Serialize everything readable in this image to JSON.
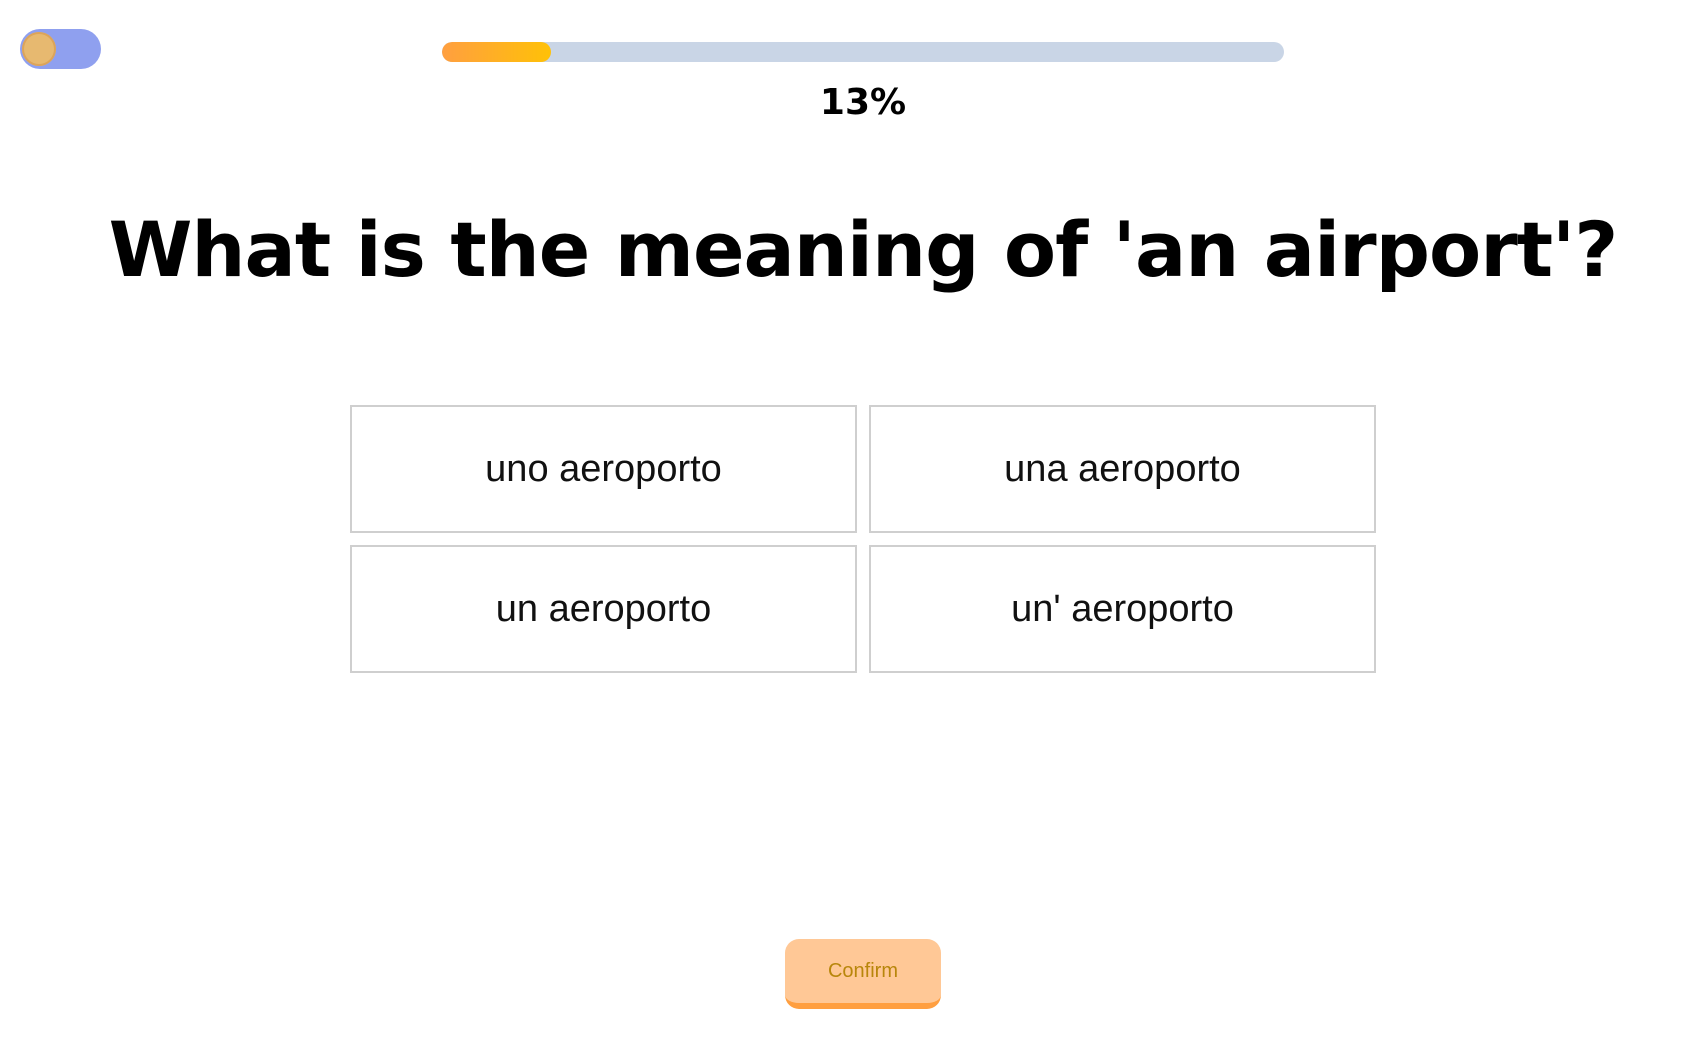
{
  "toggle": {
    "icon": "theme-toggle"
  },
  "progress": {
    "value": 0.13,
    "label": "13%",
    "fill_color_start": "#ff9f40",
    "fill_color_end": "#ffc107",
    "track_color": "#c9d5e6"
  },
  "question": {
    "text": "What is the meaning of 'an airport'?"
  },
  "options": [
    {
      "label": "uno aeroporto"
    },
    {
      "label": "una aeroporto"
    },
    {
      "label": "un aeroporto"
    },
    {
      "label": "un' aeroporto"
    }
  ],
  "confirm": {
    "label": "Confirm"
  }
}
